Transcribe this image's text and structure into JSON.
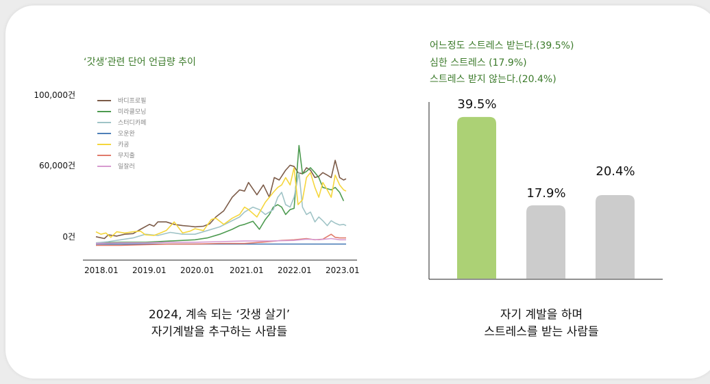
{
  "left_chart": {
    "title": "‘갓생’관련 단어 언급량 추이",
    "y_tick_labels": [
      "100,000건",
      "60,000건",
      "0건"
    ],
    "x_tick_labels": [
      "2018.01",
      "2019.01",
      "2020.01",
      "2021.01",
      "2022.01",
      "2023.01"
    ],
    "legend": [
      "바디프로필",
      "미라클모닝",
      "스터디카페",
      "오운완",
      "카공",
      "무지출",
      "일잘러"
    ],
    "caption_line1": "2024, 계속 되는 ‘갓생 살기’",
    "caption_line2": "자기계발을 추구하는 사람들"
  },
  "right_chart": {
    "stat_lines": [
      "어느정도 스트레스 받는다.(39.5%)",
      "심한 스트레스 (17.9%)",
      "스트레스 받지 않는다.(20.4%)"
    ],
    "caption_line1": "자기 계발을 하며",
    "caption_line2": "스트레스를 받는 사람들"
  },
  "chart_data": [
    {
      "type": "line",
      "title": "‘갓생’관련 단어 언급량 추이",
      "x_range": [
        2018.0,
        2023.05
      ],
      "x_ticks": [
        "2018.01",
        "2019.01",
        "2020.01",
        "2021.01",
        "2022.01",
        "2023.01"
      ],
      "y_ticks": [
        "100,000건",
        "60,000건",
        "0건"
      ],
      "grid": false,
      "legend_position": "top-left",
      "series": [
        {
          "name": "바디프로필",
          "color": "#7b5a47",
          "values": [
            [
              2018.0,
              4000
            ],
            [
              2018.17,
              2500
            ],
            [
              2018.25,
              5500
            ],
            [
              2018.42,
              4500
            ],
            [
              2018.58,
              6000
            ],
            [
              2018.75,
              6500
            ],
            [
              2018.9,
              10000
            ],
            [
              2019.08,
              14000
            ],
            [
              2019.17,
              12500
            ],
            [
              2019.25,
              16000
            ],
            [
              2019.42,
              16000
            ],
            [
              2019.58,
              14000
            ],
            [
              2019.75,
              13000
            ],
            [
              2019.9,
              12500
            ],
            [
              2020.0,
              12000
            ],
            [
              2020.17,
              12500
            ],
            [
              2020.3,
              14500
            ],
            [
              2020.42,
              20000
            ],
            [
              2020.58,
              25000
            ],
            [
              2020.75,
              36000
            ],
            [
              2020.9,
              42000
            ],
            [
              2021.0,
              41000
            ],
            [
              2021.08,
              48000
            ],
            [
              2021.25,
              38000
            ],
            [
              2021.38,
              46000
            ],
            [
              2021.5,
              36000
            ],
            [
              2021.6,
              52000
            ],
            [
              2021.7,
              50000
            ],
            [
              2021.83,
              58000
            ],
            [
              2021.92,
              62000
            ],
            [
              2022.0,
              61000
            ],
            [
              2022.08,
              56000
            ],
            [
              2022.17,
              55000
            ],
            [
              2022.25,
              60000
            ],
            [
              2022.33,
              58000
            ],
            [
              2022.42,
              52000
            ],
            [
              2022.5,
              53000
            ],
            [
              2022.58,
              56000
            ],
            [
              2022.67,
              54000
            ],
            [
              2022.75,
              52000
            ],
            [
              2022.83,
              66000
            ],
            [
              2022.92,
              52000
            ],
            [
              2023.0,
              50000
            ],
            [
              2023.05,
              51000
            ]
          ]
        },
        {
          "name": "미라클모닝",
          "color": "#4c9a4f",
          "values": [
            [
              2018.0,
              -1000
            ],
            [
              2018.5,
              -500
            ],
            [
              2019.0,
              -500
            ],
            [
              2019.5,
              500
            ],
            [
              2020.0,
              1500
            ],
            [
              2020.25,
              3000
            ],
            [
              2020.5,
              6000
            ],
            [
              2020.75,
              10000
            ],
            [
              2020.9,
              13000
            ],
            [
              2021.0,
              14000
            ],
            [
              2021.17,
              16500
            ],
            [
              2021.3,
              10000
            ],
            [
              2021.42,
              18000
            ],
            [
              2021.5,
              22000
            ],
            [
              2021.58,
              28000
            ],
            [
              2021.67,
              30000
            ],
            [
              2021.75,
              28000
            ],
            [
              2021.83,
              22000
            ],
            [
              2021.92,
              26000
            ],
            [
              2022.0,
              27000
            ],
            [
              2022.1,
              78000
            ],
            [
              2022.17,
              55000
            ],
            [
              2022.25,
              57000
            ],
            [
              2022.33,
              60000
            ],
            [
              2022.42,
              56000
            ],
            [
              2022.5,
              52000
            ],
            [
              2022.58,
              44000
            ],
            [
              2022.67,
              43000
            ],
            [
              2022.75,
              42000
            ],
            [
              2022.83,
              44000
            ],
            [
              2022.92,
              40000
            ],
            [
              2023.0,
              33000
            ]
          ]
        },
        {
          "name": "스터디카페",
          "color": "#9fc3c6",
          "values": [
            [
              2018.0,
              -1000
            ],
            [
              2018.25,
              0
            ],
            [
              2018.5,
              1500
            ],
            [
              2018.75,
              3000
            ],
            [
              2019.0,
              6000
            ],
            [
              2019.25,
              5000
            ],
            [
              2019.5,
              7500
            ],
            [
              2019.75,
              6000
            ],
            [
              2020.0,
              6000
            ],
            [
              2020.25,
              9000
            ],
            [
              2020.5,
              12000
            ],
            [
              2020.75,
              17000
            ],
            [
              2020.9,
              20000
            ],
            [
              2021.0,
              24000
            ],
            [
              2021.17,
              28000
            ],
            [
              2021.3,
              26000
            ],
            [
              2021.42,
              22000
            ],
            [
              2021.58,
              26000
            ],
            [
              2021.67,
              36000
            ],
            [
              2021.75,
              40000
            ],
            [
              2021.83,
              30000
            ],
            [
              2021.92,
              28000
            ],
            [
              2022.0,
              36000
            ],
            [
              2022.1,
              56000
            ],
            [
              2022.17,
              28000
            ],
            [
              2022.25,
              22000
            ],
            [
              2022.33,
              24000
            ],
            [
              2022.42,
              16000
            ],
            [
              2022.5,
              20000
            ],
            [
              2022.58,
              17000
            ],
            [
              2022.67,
              13000
            ],
            [
              2022.75,
              17000
            ],
            [
              2022.83,
              15000
            ],
            [
              2022.92,
              13500
            ],
            [
              2023.0,
              14000
            ],
            [
              2023.05,
              13000
            ]
          ]
        },
        {
          "name": "오운완",
          "color": "#4e7fb8",
          "values": [
            [
              2018.0,
              -2000
            ],
            [
              2019.0,
              -2000
            ],
            [
              2020.0,
              -2000
            ],
            [
              2021.0,
              -2000
            ],
            [
              2022.0,
              -2000
            ],
            [
              2023.05,
              -2000
            ]
          ]
        },
        {
          "name": "카공",
          "color": "#f5d63c",
          "values": [
            [
              2018.0,
              8000
            ],
            [
              2018.1,
              6000
            ],
            [
              2018.2,
              7000
            ],
            [
              2018.3,
              3500
            ],
            [
              2018.42,
              8000
            ],
            [
              2018.58,
              7000
            ],
            [
              2018.75,
              8000
            ],
            [
              2018.9,
              8500
            ],
            [
              2019.0,
              5500
            ],
            [
              2019.17,
              5000
            ],
            [
              2019.3,
              7000
            ],
            [
              2019.42,
              9000
            ],
            [
              2019.58,
              16000
            ],
            [
              2019.75,
              7000
            ],
            [
              2019.9,
              8500
            ],
            [
              2020.0,
              10500
            ],
            [
              2020.17,
              9000
            ],
            [
              2020.33,
              18000
            ],
            [
              2020.42,
              19000
            ],
            [
              2020.58,
              14000
            ],
            [
              2020.75,
              19000
            ],
            [
              2020.9,
              22000
            ],
            [
              2021.0,
              28000
            ],
            [
              2021.08,
              26000
            ],
            [
              2021.25,
              20000
            ],
            [
              2021.42,
              32000
            ],
            [
              2021.58,
              40000
            ],
            [
              2021.67,
              44000
            ],
            [
              2021.75,
              46000
            ],
            [
              2021.83,
              52000
            ],
            [
              2021.92,
              46000
            ],
            [
              2022.0,
              60000
            ],
            [
              2022.08,
              30000
            ],
            [
              2022.17,
              34000
            ],
            [
              2022.25,
              52000
            ],
            [
              2022.33,
              56000
            ],
            [
              2022.42,
              44000
            ],
            [
              2022.5,
              36000
            ],
            [
              2022.58,
              48000
            ],
            [
              2022.67,
              42000
            ],
            [
              2022.75,
              36000
            ],
            [
              2022.83,
              54000
            ],
            [
              2022.92,
              46000
            ],
            [
              2023.0,
              42000
            ],
            [
              2023.05,
              41000
            ]
          ]
        },
        {
          "name": "무지출",
          "color": "#e07a6a",
          "values": [
            [
              2018.0,
              -3000
            ],
            [
              2018.5,
              -3000
            ],
            [
              2019.0,
              -2500
            ],
            [
              2019.5,
              -2000
            ],
            [
              2020.0,
              -2000
            ],
            [
              2020.5,
              -1500
            ],
            [
              2020.75,
              -1500
            ],
            [
              2021.0,
              -1500
            ],
            [
              2021.5,
              0
            ],
            [
              2021.75,
              1000
            ],
            [
              2022.0,
              1500
            ],
            [
              2022.25,
              2500
            ],
            [
              2022.42,
              1500
            ],
            [
              2022.58,
              2000
            ],
            [
              2022.75,
              6000
            ],
            [
              2022.83,
              3500
            ],
            [
              2022.92,
              3000
            ],
            [
              2023.05,
              3000
            ]
          ]
        },
        {
          "name": "일잘러",
          "color": "#d79ad0",
          "values": [
            [
              2018.0,
              -1500
            ],
            [
              2018.5,
              -1000
            ],
            [
              2019.0,
              -1000
            ],
            [
              2019.5,
              -500
            ],
            [
              2020.0,
              -500
            ],
            [
              2020.5,
              0
            ],
            [
              2021.0,
              500
            ],
            [
              2021.5,
              500
            ],
            [
              2022.0,
              1000
            ],
            [
              2022.25,
              2000
            ],
            [
              2022.5,
              1500
            ],
            [
              2022.75,
              2500
            ],
            [
              2022.92,
              1500
            ],
            [
              2023.05,
              1500
            ]
          ]
        }
      ]
    },
    {
      "type": "bar",
      "categories": [
        "어느정도 스트레스 받는다.",
        "심한 스트레스",
        "스트레스 받지 않는다."
      ],
      "values": [
        39.5,
        17.9,
        20.4
      ],
      "value_labels": [
        "39.5%",
        "17.9%",
        "20.4%"
      ],
      "colors": [
        "#acd175",
        "#cccccc",
        "#cccccc"
      ],
      "ylim": [
        0,
        46
      ]
    }
  ]
}
